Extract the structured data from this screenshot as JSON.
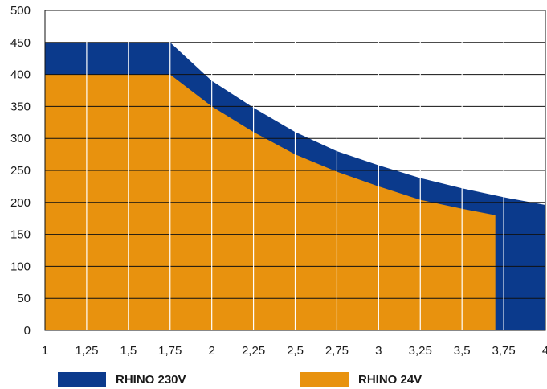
{
  "chart_data": {
    "type": "area",
    "title": "",
    "xlabel": "",
    "ylabel": "",
    "xlim": [
      1,
      4
    ],
    "ylim": [
      0,
      500
    ],
    "x_ticks": [
      "1",
      "1,25",
      "1,5",
      "1,75",
      "2",
      "2,25",
      "2,5",
      "2,75",
      "3",
      "3,25",
      "3,5",
      "3,75",
      "4"
    ],
    "y_ticks": [
      "0",
      "50",
      "100",
      "150",
      "200",
      "250",
      "300",
      "350",
      "400",
      "450",
      "500"
    ],
    "grid": true,
    "legend_position": "bottom",
    "series": [
      {
        "name": "RHINO 230V",
        "color": "#0b3a8c",
        "x": [
          1,
          1.75,
          2,
          2.25,
          2.5,
          2.75,
          3,
          3.25,
          3.5,
          3.75,
          4
        ],
        "y": [
          450,
          450,
          390,
          348,
          310,
          280,
          258,
          238,
          222,
          208,
          196
        ]
      },
      {
        "name": "RHINO 24V",
        "color": "#e8920e",
        "x": [
          1,
          1.75,
          2,
          2.25,
          2.5,
          2.75,
          3,
          3.25,
          3.5,
          3.7
        ],
        "y": [
          400,
          400,
          350,
          310,
          275,
          248,
          225,
          204,
          190,
          180
        ]
      }
    ]
  }
}
